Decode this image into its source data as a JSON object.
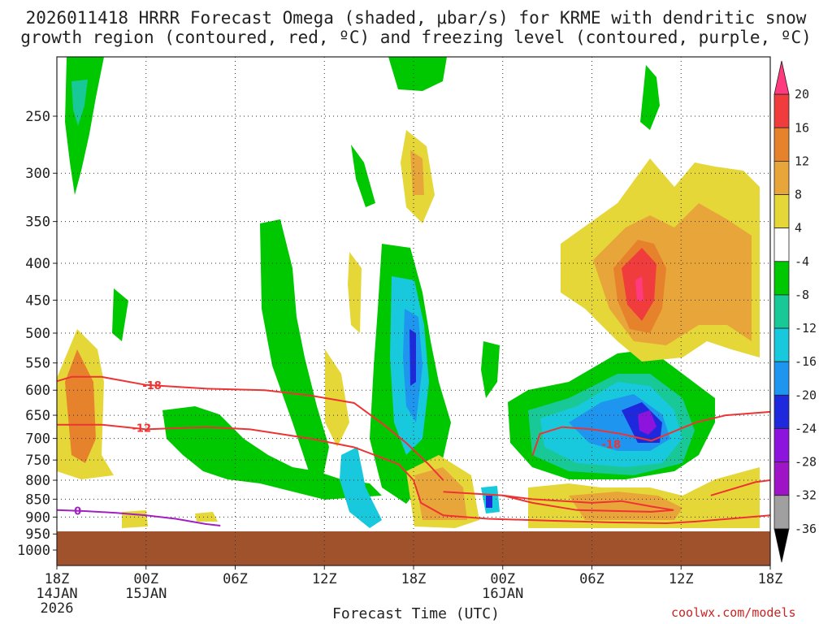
{
  "chart_data": {
    "type": "heatmap",
    "title_line1": "2026011418 HRRR Forecast Omega (shaded, μbar/s) for KRME with dendritic snow",
    "title_line2": "growth region (contoured, red, ºC) and freezing level (contoured, purple, ºC)",
    "xlabel": "Forecast Time (UTC)",
    "credit": "coolwx.com/models",
    "y_ticks": [
      250,
      300,
      350,
      400,
      450,
      500,
      550,
      600,
      650,
      700,
      750,
      800,
      850,
      900,
      950,
      1000
    ],
    "y_range_hpa": [
      200,
      1035
    ],
    "x_range_hours": [
      0,
      48
    ],
    "x_ticks": [
      {
        "hour": 0,
        "label": "18Z",
        "sub1": "14JAN",
        "sub2": "2026"
      },
      {
        "hour": 6,
        "label": "00Z",
        "sub1": "15JAN",
        "sub2": ""
      },
      {
        "hour": 12,
        "label": "06Z",
        "sub1": "",
        "sub2": ""
      },
      {
        "hour": 18,
        "label": "12Z",
        "sub1": "",
        "sub2": ""
      },
      {
        "hour": 24,
        "label": "18Z",
        "sub1": "",
        "sub2": ""
      },
      {
        "hour": 30,
        "label": "00Z",
        "sub1": "16JAN",
        "sub2": ""
      },
      {
        "hour": 36,
        "label": "06Z",
        "sub1": "",
        "sub2": ""
      },
      {
        "hour": 42,
        "label": "12Z",
        "sub1": "",
        "sub2": ""
      },
      {
        "hour": 48,
        "label": "18Z",
        "sub1": "",
        "sub2": ""
      }
    ],
    "colorbar": {
      "labels": [
        "20",
        "16",
        "12",
        "8",
        "4",
        "-4",
        "-8",
        "-12",
        "-16",
        "-20",
        "-24",
        "-28",
        "-32",
        "-36"
      ],
      "colors": [
        "#ff3a7e",
        "#f03c3c",
        "#e6822c",
        "#e8a53a",
        "#e6d738",
        "#ffffff",
        "#00c800",
        "#18c896",
        "#18c8dc",
        "#1e96f0",
        "#1e28dc",
        "#8c14dc",
        "#a014c8",
        "#a0a0a0",
        "#000000"
      ]
    },
    "contour_labels": {
      "dgz_warm": "-12",
      "dgz_cold": "-18",
      "freezing": "0"
    },
    "series": [
      {
        "name": "-18C isotherm (early)",
        "type": "line",
        "color": "#ee3333",
        "points": [
          [
            0,
            583
          ],
          [
            1,
            575
          ],
          [
            3,
            575
          ],
          [
            6,
            590
          ],
          [
            10,
            597
          ],
          [
            14,
            600
          ],
          [
            17,
            610
          ],
          [
            20,
            625
          ],
          [
            22,
            670
          ],
          [
            23.5,
            710
          ],
          [
            25,
            760
          ],
          [
            26,
            800
          ]
        ]
      },
      {
        "name": "-12C isotherm (early)",
        "type": "line",
        "color": "#ee3333",
        "points": [
          [
            0,
            670
          ],
          [
            3,
            670
          ],
          [
            6,
            680
          ],
          [
            10,
            675
          ],
          [
            13,
            680
          ],
          [
            17,
            700
          ],
          [
            20,
            720
          ],
          [
            23,
            760
          ],
          [
            24,
            800
          ],
          [
            24.5,
            860
          ],
          [
            26,
            895
          ],
          [
            29,
            905
          ],
          [
            33,
            910
          ],
          [
            37,
            915
          ],
          [
            41,
            918
          ],
          [
            43,
            913
          ],
          [
            48,
            895
          ]
        ]
      },
      {
        "name": "-12C isotherm (late)",
        "type": "line",
        "color": "#ee3333",
        "points": [
          [
            26,
            830
          ],
          [
            30,
            840
          ],
          [
            32,
            850
          ],
          [
            36,
            860
          ],
          [
            38,
            855
          ],
          [
            40,
            870
          ],
          [
            41.5,
            880
          ],
          [
            40,
            885
          ],
          [
            35,
            880
          ],
          [
            32,
            860
          ],
          [
            30,
            840
          ]
        ]
      },
      {
        "name": "-18C isotherm (late)",
        "type": "line",
        "color": "#ee3333",
        "points": [
          [
            32,
            740
          ],
          [
            32.5,
            690
          ],
          [
            34,
            675
          ],
          [
            36,
            680
          ],
          [
            38,
            690
          ],
          [
            40,
            705
          ],
          [
            43,
            665
          ],
          [
            45,
            650
          ],
          [
            48,
            643
          ]
        ]
      },
      {
        "name": "-12C isotherm (late right)",
        "type": "line",
        "color": "#ee3333",
        "points": [
          [
            44,
            840
          ],
          [
            47,
            805
          ],
          [
            48,
            800
          ]
        ]
      },
      {
        "name": "0C freezing level",
        "type": "line",
        "color": "#a020c0",
        "points": [
          [
            0,
            880
          ],
          [
            2,
            883
          ],
          [
            4,
            888
          ],
          [
            6,
            895
          ],
          [
            8,
            905
          ],
          [
            10,
            920
          ],
          [
            11,
            925
          ]
        ]
      }
    ]
  }
}
